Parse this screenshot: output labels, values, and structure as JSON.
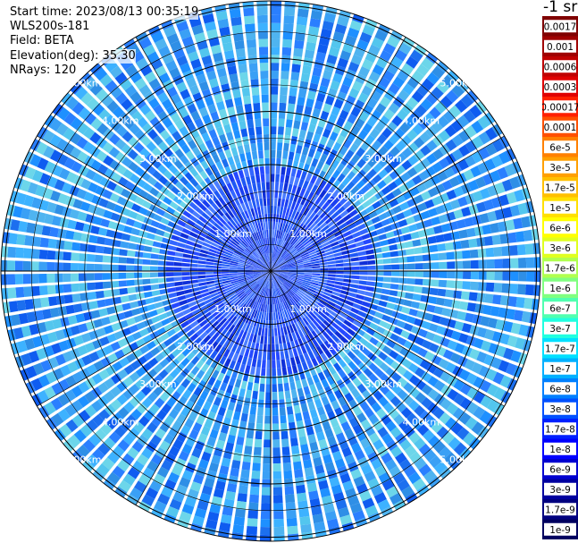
{
  "info": {
    "start_time": "Start time: 2023/08/13 00:35:19",
    "instrument": "WLS200s-181",
    "field": "Field: BETA",
    "elevation": "Elevation(deg): 35.30",
    "nrays": "NRays: 120"
  },
  "range_ring_labels": [
    "1.00km",
    "2.00km",
    "3.00km",
    "4.00km",
    "5.00km"
  ],
  "colorbar": {
    "unit_label": "-1 sr",
    "ticks": [
      "0.0017",
      "0.001",
      "0.0006",
      "0.0003",
      "0.00017",
      "0.0001",
      "6e-5",
      "3e-5",
      "1.7e-5",
      "1e-5",
      "6e-6",
      "3e-6",
      "1.7e-6",
      "1e-6",
      "6e-7",
      "3e-7",
      "1.7e-7",
      "1e-7",
      "6e-8",
      "3e-8",
      "1.7e-8",
      "1e-8",
      "6e-9",
      "3e-9",
      "1.7e-9",
      "1e-9"
    ],
    "colors": [
      "#800000",
      "#a00000",
      "#c00000",
      "#e00000",
      "#ff2000",
      "#ff5000",
      "#ff8000",
      "#ffa000",
      "#ffc000",
      "#ffe000",
      "#ffff00",
      "#e0ff20",
      "#b0ff50",
      "#80ff80",
      "#50ffb0",
      "#20ffe0",
      "#00e0ff",
      "#00b0ff",
      "#0080ff",
      "#0050ff",
      "#0020ff",
      "#0000ff",
      "#0000d0",
      "#0000a0",
      "#000080",
      "#000060"
    ]
  }
}
